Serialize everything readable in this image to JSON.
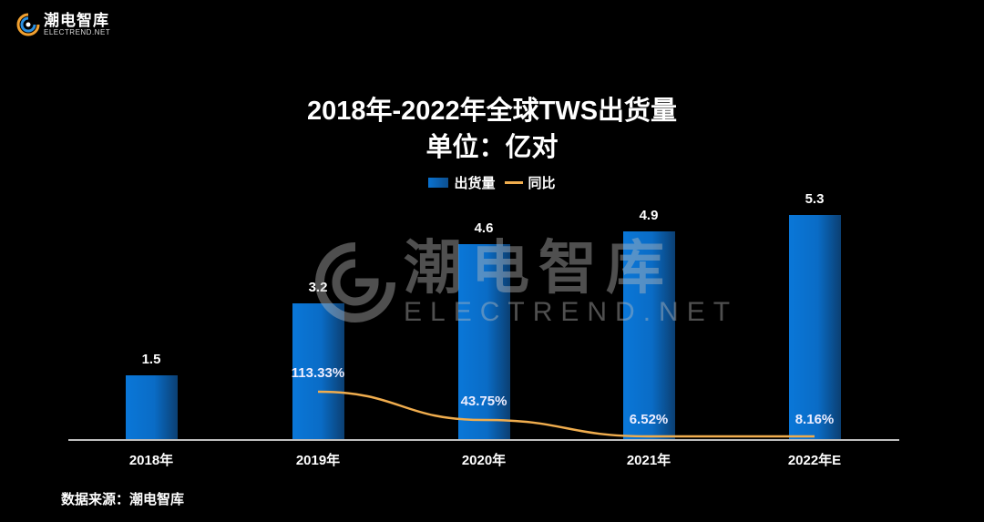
{
  "logo": {
    "name_cn": "潮电智库",
    "name_en": "ELECTREND.NET"
  },
  "title": {
    "line1": "2018年-2022年全球TWS出货量",
    "line2": "单位：亿对"
  },
  "legend": [
    {
      "label": "出货量",
      "type": "bar",
      "color": "#0A72D0"
    },
    {
      "label": "同比",
      "type": "line",
      "color": "#F0AD4E"
    }
  ],
  "watermark": {
    "name_cn": "潮电智库",
    "name_en": "ELECTREND.NET"
  },
  "source": "数据来源：潮电智库",
  "colors": {
    "bar": "#0A72D0",
    "line": "#F0AD4E",
    "background": "#000000",
    "axis": "#BFBFBF"
  },
  "chart_data": {
    "type": "bar",
    "title": "2018年-2022年全球TWS出货量",
    "subtitle": "单位：亿对",
    "categories": [
      "2018年",
      "2019年",
      "2020年",
      "2021年",
      "2022年E"
    ],
    "series": [
      {
        "name": "出货量",
        "type": "bar",
        "values": [
          1.5,
          3.2,
          4.6,
          4.9,
          5.3
        ],
        "labels": [
          "1.5",
          "3.2",
          "4.6",
          "4.9",
          "5.3"
        ]
      },
      {
        "name": "同比",
        "type": "line",
        "values": [
          null,
          113.33,
          43.75,
          6.52,
          8.16
        ],
        "labels": [
          "",
          "113.33%",
          "43.75%",
          "6.52%",
          "8.16%"
        ]
      }
    ],
    "xlabel": "",
    "ylabel": "",
    "legend_position": "top",
    "grid": false,
    "source": "数据来源：潮电智库"
  }
}
